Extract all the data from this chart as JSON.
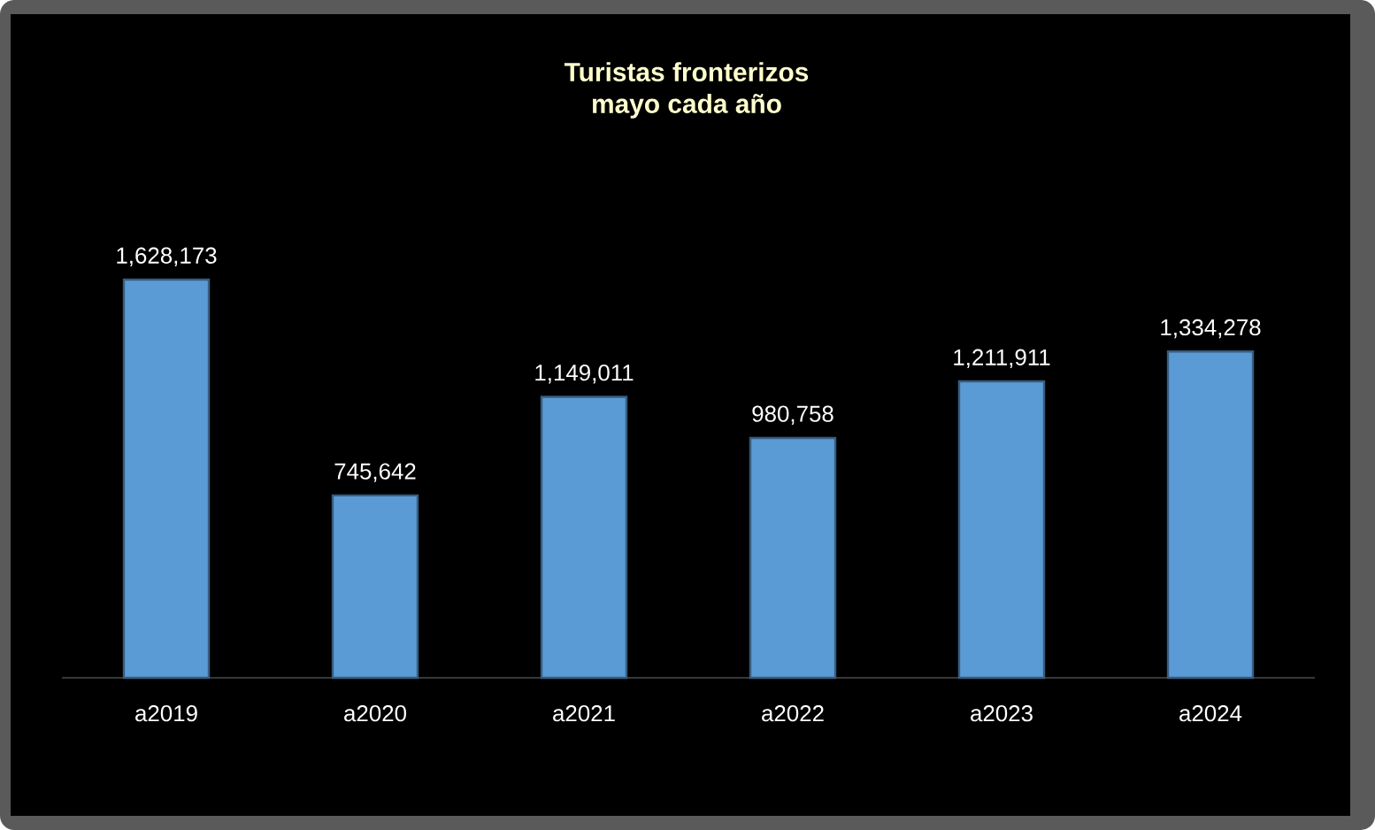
{
  "chart_data": {
    "type": "bar",
    "title": "Turistas fronterizos\nmayo cada año",
    "categories": [
      "a2019",
      "a2020",
      "a2021",
      "a2022",
      "a2023",
      "a2024"
    ],
    "values": [
      1628173,
      745642,
      1149011,
      980758,
      1211911,
      1334278
    ],
    "value_labels": [
      "1,628,173",
      "745,642",
      "1,149,011",
      "980,758",
      "1,211,911",
      "1,334,278"
    ],
    "color": "#5b9bd5"
  }
}
